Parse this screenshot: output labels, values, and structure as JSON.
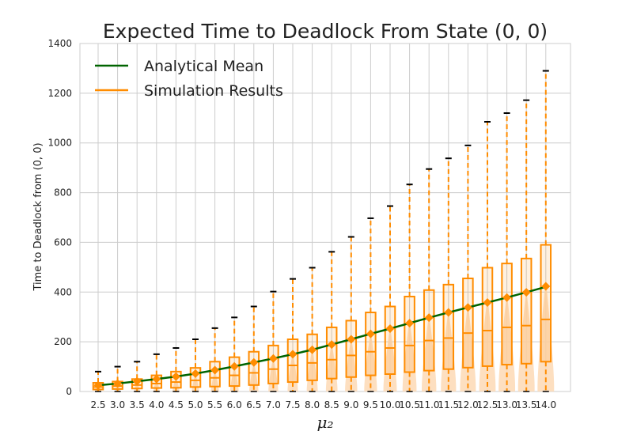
{
  "chart_data": {
    "type": "box",
    "title": "Expected Time to Deadlock From State (0, 0)",
    "xlabel": "μ₂",
    "ylabel": "Time to Deadlock from (0, 0)",
    "ylim": [
      0,
      1400
    ],
    "yticks": [
      "0",
      "200",
      "400",
      "600",
      "800",
      "1000",
      "1200",
      "1400"
    ],
    "categories": [
      "2.5",
      "3.0",
      "3.5",
      "4.0",
      "4.5",
      "5.0",
      "5.5",
      "6.0",
      "6.5",
      "7.0",
      "7.5",
      "8.0",
      "8.5",
      "9.0",
      "9.5",
      "10.0",
      "10.5",
      "11.0",
      "11.5",
      "12.0",
      "12.5",
      "13.0",
      "13.5",
      "14.0"
    ],
    "grid": true,
    "legend": {
      "position": "top-left",
      "entries": [
        "Analytical Mean",
        "Simulation Results"
      ]
    },
    "colors": {
      "analytical": "#006400",
      "simulation": "#ff8c00",
      "violin": "#fdd9b5",
      "grid": "#cccccc"
    },
    "analytical_mean": [
      25,
      32,
      41,
      50,
      60,
      72,
      86,
      101,
      117,
      133,
      150,
      168,
      189,
      210,
      232,
      253,
      275,
      297,
      318,
      338,
      358,
      378,
      399,
      421
    ],
    "simulation_mean": [
      25,
      32,
      41,
      50,
      60,
      72,
      86,
      101,
      117,
      133,
      150,
      168,
      189,
      210,
      232,
      253,
      275,
      297,
      318,
      338,
      358,
      378,
      399,
      423
    ],
    "boxes": [
      {
        "min": 0,
        "q1": 8,
        "median": 18,
        "q3": 35,
        "whisker_high": 80
      },
      {
        "min": 0,
        "q1": 10,
        "median": 22,
        "q3": 40,
        "whisker_high": 100
      },
      {
        "min": 0,
        "q1": 12,
        "median": 26,
        "q3": 50,
        "whisker_high": 120
      },
      {
        "min": 0,
        "q1": 14,
        "median": 32,
        "q3": 65,
        "whisker_high": 150
      },
      {
        "min": 0,
        "q1": 15,
        "median": 38,
        "q3": 80,
        "whisker_high": 175
      },
      {
        "min": 0,
        "q1": 18,
        "median": 45,
        "q3": 95,
        "whisker_high": 210
      },
      {
        "min": 0,
        "q1": 20,
        "median": 55,
        "q3": 120,
        "whisker_high": 255
      },
      {
        "min": 0,
        "q1": 22,
        "median": 65,
        "q3": 138,
        "whisker_high": 298
      },
      {
        "min": 0,
        "q1": 26,
        "median": 75,
        "q3": 160,
        "whisker_high": 342
      },
      {
        "min": 0,
        "q1": 32,
        "median": 90,
        "q3": 185,
        "whisker_high": 402
      },
      {
        "min": 0,
        "q1": 38,
        "median": 105,
        "q3": 210,
        "whisker_high": 453
      },
      {
        "min": 0,
        "q1": 45,
        "median": 115,
        "q3": 230,
        "whisker_high": 498
      },
      {
        "min": 0,
        "q1": 52,
        "median": 128,
        "q3": 258,
        "whisker_high": 562
      },
      {
        "min": 0,
        "q1": 58,
        "median": 145,
        "q3": 285,
        "whisker_high": 622
      },
      {
        "min": 0,
        "q1": 65,
        "median": 160,
        "q3": 318,
        "whisker_high": 697
      },
      {
        "min": 0,
        "q1": 70,
        "median": 175,
        "q3": 342,
        "whisker_high": 746
      },
      {
        "min": 0,
        "q1": 78,
        "median": 185,
        "q3": 382,
        "whisker_high": 833
      },
      {
        "min": 0,
        "q1": 84,
        "median": 205,
        "q3": 408,
        "whisker_high": 895
      },
      {
        "min": 0,
        "q1": 90,
        "median": 215,
        "q3": 430,
        "whisker_high": 938
      },
      {
        "min": 0,
        "q1": 96,
        "median": 235,
        "q3": 455,
        "whisker_high": 990
      },
      {
        "min": 0,
        "q1": 102,
        "median": 245,
        "q3": 498,
        "whisker_high": 1085
      },
      {
        "min": 0,
        "q1": 108,
        "median": 258,
        "q3": 515,
        "whisker_high": 1120
      },
      {
        "min": 0,
        "q1": 112,
        "median": 265,
        "q3": 535,
        "whisker_high": 1172
      },
      {
        "min": 0,
        "q1": 120,
        "median": 290,
        "q3": 590,
        "whisker_high": 1290
      }
    ]
  }
}
